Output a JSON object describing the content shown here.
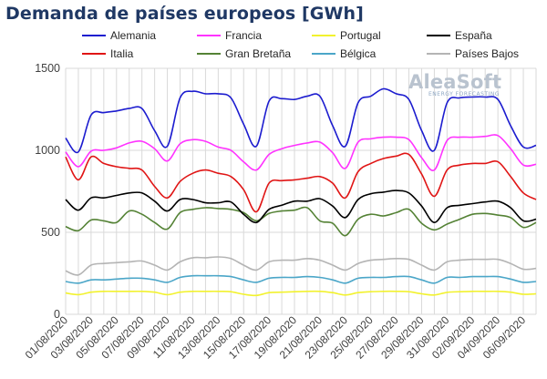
{
  "title": "Demanda de países europeos [GWh]",
  "logo": {
    "name": "AleaSoft",
    "tagline": "ENERGY FORECASTING"
  },
  "colors": {
    "Alemania": "#1c1ccf",
    "Francia": "#ff33ff",
    "Portugal": "#f2f22e",
    "España": "#000000",
    "Italia": "#e01515",
    "Gran Bretaña": "#548235",
    "Bélgica": "#4ba6c8",
    "Países Bajos": "#b4b4b4",
    "grid": "#d9d9d9"
  },
  "chart_data": {
    "type": "line",
    "title": "Demanda de países europeos [GWh]",
    "xlabel": "",
    "ylabel": "",
    "ylim": [
      0,
      1500
    ],
    "yticks": [
      0,
      500,
      1000,
      1500
    ],
    "xlim": [
      "01/08/2020",
      "07/09/2020"
    ],
    "xtick_labels": [
      "01/08/2020",
      "03/08/2020",
      "05/08/2020",
      "07/08/2020",
      "09/08/2020",
      "11/08/2020",
      "13/08/2020",
      "15/08/2020",
      "17/08/2020",
      "19/08/2020",
      "21/08/2020",
      "23/08/2020",
      "25/08/2020",
      "27/08/2020",
      "29/08/2020",
      "31/08/2020",
      "02/09/2020",
      "04/09/2020",
      "06/09/2020"
    ],
    "grid": true,
    "legend_position": "top",
    "x": [
      "01/08/2020",
      "02/08/2020",
      "03/08/2020",
      "04/08/2020",
      "05/08/2020",
      "06/08/2020",
      "07/08/2020",
      "08/08/2020",
      "09/08/2020",
      "10/08/2020",
      "11/08/2020",
      "12/08/2020",
      "13/08/2020",
      "14/08/2020",
      "15/08/2020",
      "16/08/2020",
      "17/08/2020",
      "18/08/2020",
      "19/08/2020",
      "20/08/2020",
      "21/08/2020",
      "22/08/2020",
      "23/08/2020",
      "24/08/2020",
      "25/08/2020",
      "26/08/2020",
      "27/08/2020",
      "28/08/2020",
      "29/08/2020",
      "30/08/2020",
      "31/08/2020",
      "01/09/2020",
      "02/09/2020",
      "03/09/2020",
      "04/09/2020",
      "05/09/2020",
      "06/09/2020",
      "07/09/2020"
    ],
    "series": [
      {
        "name": "Alemania",
        "values": [
          1075,
          990,
          1215,
          1230,
          1240,
          1255,
          1255,
          1120,
          1025,
          1320,
          1360,
          1345,
          1345,
          1320,
          1160,
          1025,
          1300,
          1315,
          1310,
          1330,
          1330,
          1150,
          1025,
          1290,
          1330,
          1375,
          1345,
          1310,
          1120,
          1000,
          1290,
          1320,
          1325,
          1325,
          1310,
          1150,
          1020,
          1030
        ]
      },
      {
        "name": "Francia",
        "values": [
          990,
          900,
          995,
          1000,
          1015,
          1045,
          1055,
          1010,
          935,
          1040,
          1065,
          1055,
          1020,
          1000,
          930,
          880,
          975,
          1010,
          1030,
          1045,
          1050,
          985,
          890,
          1050,
          1070,
          1080,
          1080,
          1065,
          955,
          880,
          1060,
          1080,
          1080,
          1085,
          1090,
          1010,
          910,
          915
        ]
      },
      {
        "name": "Portugal",
        "values": [
          130,
          120,
          135,
          140,
          140,
          140,
          140,
          135,
          120,
          135,
          140,
          140,
          140,
          138,
          122,
          115,
          132,
          135,
          138,
          140,
          140,
          132,
          118,
          132,
          138,
          140,
          140,
          138,
          125,
          118,
          134,
          138,
          140,
          140,
          140,
          135,
          122,
          125
        ]
      },
      {
        "name": "España",
        "values": [
          700,
          635,
          710,
          710,
          725,
          740,
          740,
          690,
          630,
          700,
          700,
          680,
          680,
          685,
          610,
          560,
          640,
          665,
          690,
          690,
          705,
          660,
          590,
          700,
          735,
          745,
          755,
          740,
          660,
          560,
          650,
          665,
          675,
          685,
          690,
          650,
          570,
          580
        ]
      },
      {
        "name": "Italia",
        "values": [
          960,
          820,
          960,
          920,
          900,
          890,
          880,
          780,
          710,
          810,
          860,
          880,
          860,
          840,
          760,
          625,
          800,
          815,
          820,
          830,
          840,
          800,
          710,
          870,
          920,
          950,
          965,
          975,
          855,
          720,
          880,
          910,
          920,
          920,
          930,
          840,
          740,
          700
        ]
      },
      {
        "name": "Gran Bretaña",
        "values": [
          535,
          510,
          575,
          570,
          560,
          630,
          610,
          560,
          520,
          620,
          640,
          650,
          645,
          640,
          620,
          570,
          615,
          630,
          635,
          650,
          570,
          555,
          480,
          580,
          610,
          600,
          620,
          640,
          555,
          515,
          550,
          580,
          610,
          615,
          605,
          590,
          530,
          560
        ]
      },
      {
        "name": "Bélgica",
        "values": [
          200,
          190,
          210,
          210,
          215,
          220,
          220,
          210,
          195,
          225,
          235,
          235,
          235,
          230,
          210,
          195,
          220,
          225,
          225,
          230,
          225,
          210,
          190,
          220,
          225,
          225,
          230,
          230,
          210,
          190,
          225,
          225,
          230,
          230,
          230,
          215,
          195,
          200
        ]
      },
      {
        "name": "Países Bajos",
        "values": [
          265,
          240,
          300,
          310,
          315,
          320,
          325,
          300,
          270,
          320,
          345,
          345,
          350,
          340,
          300,
          270,
          320,
          330,
          330,
          340,
          330,
          300,
          270,
          310,
          330,
          335,
          340,
          335,
          300,
          270,
          320,
          330,
          335,
          335,
          335,
          310,
          275,
          280
        ]
      }
    ]
  }
}
